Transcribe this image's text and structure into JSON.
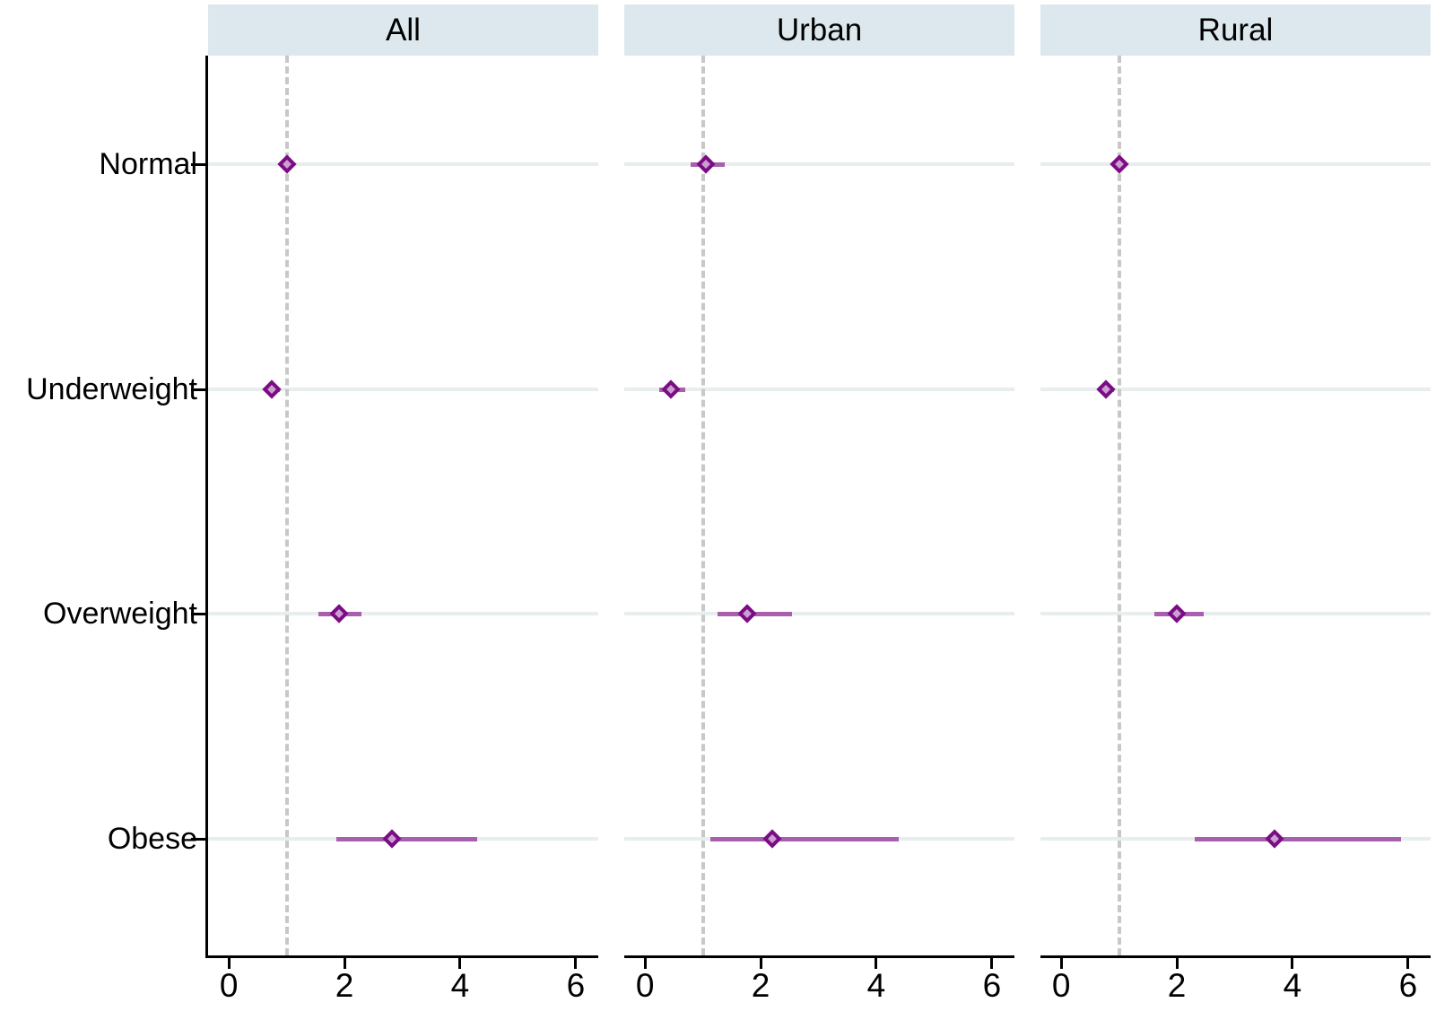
{
  "chart_data": {
    "type": "scatter",
    "subtype": "forest-plot-odds-ratios",
    "title": "",
    "xlabel": "",
    "ylabel": "",
    "categories": [
      "Normal",
      "Underweight",
      "Overweight",
      "Obese"
    ],
    "x_ticks": [
      0,
      2,
      4,
      6
    ],
    "x_tick_labels": [
      "0",
      "2",
      "4",
      "6"
    ],
    "xlim": [
      -0.36,
      6.39
    ],
    "reference_line_x": 1,
    "grid": "horizontal-category-lines",
    "legend": "none",
    "series": [
      {
        "name": "All",
        "points": [
          {
            "category": "Normal",
            "estimate": 1.0,
            "ci_lo": 1.0,
            "ci_hi": 1.0
          },
          {
            "category": "Underweight",
            "estimate": 0.74,
            "ci_lo": 0.62,
            "ci_hi": 0.88
          },
          {
            "category": "Overweight",
            "estimate": 1.9,
            "ci_lo": 1.55,
            "ci_hi": 2.3
          },
          {
            "category": "Obese",
            "estimate": 2.82,
            "ci_lo": 1.86,
            "ci_hi": 4.3
          }
        ]
      },
      {
        "name": "Urban",
        "points": [
          {
            "category": "Normal",
            "estimate": 1.05,
            "ci_lo": 0.79,
            "ci_hi": 1.38
          },
          {
            "category": "Underweight",
            "estimate": 0.44,
            "ci_lo": 0.25,
            "ci_hi": 0.7
          },
          {
            "category": "Overweight",
            "estimate": 1.77,
            "ci_lo": 1.26,
            "ci_hi": 2.54
          },
          {
            "category": "Obese",
            "estimate": 2.2,
            "ci_lo": 1.13,
            "ci_hi": 4.39
          }
        ]
      },
      {
        "name": "Rural",
        "points": [
          {
            "category": "Normal",
            "estimate": 1.0,
            "ci_lo": 1.0,
            "ci_hi": 1.0
          },
          {
            "category": "Underweight",
            "estimate": 0.78,
            "ci_lo": 0.66,
            "ci_hi": 0.92
          },
          {
            "category": "Overweight",
            "estimate": 2.0,
            "ci_lo": 1.61,
            "ci_hi": 2.47
          },
          {
            "category": "Obese",
            "estimate": 3.69,
            "ci_lo": 2.31,
            "ci_hi": 5.88
          }
        ]
      }
    ],
    "colors": {
      "header_bg": "#dde8ee",
      "marker_border": "#7b0d84",
      "marker_fill": "#cc9fd2",
      "ci_line": "#a85fae",
      "reference_line": "#c8c8c8",
      "gridline": "#e8eded",
      "axis": "#000000",
      "background": "#ffffff"
    }
  }
}
